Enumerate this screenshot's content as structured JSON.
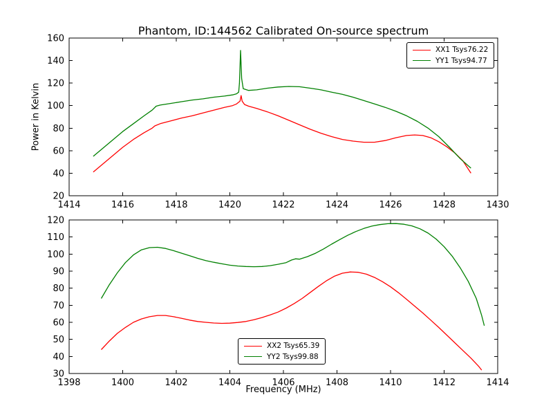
{
  "figure": {
    "background": "#ffffff"
  },
  "chart_data": [
    {
      "type": "line",
      "title": "Phantom, ID:144562 Calibrated On-source spectrum",
      "xlabel": "",
      "ylabel": "Power in Kelvin",
      "xlim": [
        1414,
        1430
      ],
      "ylim": [
        20,
        160
      ],
      "xticks": [
        1414,
        1416,
        1418,
        1420,
        1422,
        1424,
        1426,
        1428,
        1430
      ],
      "yticks": [
        20,
        40,
        60,
        80,
        100,
        120,
        140,
        160
      ],
      "grid": false,
      "legend": {
        "position": "upper right",
        "entries": [
          {
            "label": "XX1 Tsys76.22",
            "color": "#ff0000"
          },
          {
            "label": "YY1 Tsys94.77",
            "color": "#008000"
          }
        ]
      },
      "series": [
        {
          "name": "XX1 Tsys76.22",
          "color": "#ff0000",
          "points": [
            [
              1414.9,
              41
            ],
            [
              1415.2,
              47
            ],
            [
              1415.6,
              55
            ],
            [
              1416.0,
              63
            ],
            [
              1416.4,
              70
            ],
            [
              1416.8,
              76
            ],
            [
              1417.1,
              80
            ],
            [
              1417.2,
              82
            ],
            [
              1417.4,
              84
            ],
            [
              1417.8,
              86.5
            ],
            [
              1418.2,
              89
            ],
            [
              1418.6,
              91
            ],
            [
              1419.0,
              93.5
            ],
            [
              1419.4,
              96
            ],
            [
              1419.8,
              98.5
            ],
            [
              1420.1,
              100
            ],
            [
              1420.25,
              101.5
            ],
            [
              1420.33,
              103
            ],
            [
              1420.38,
              104
            ],
            [
              1420.42,
              109
            ],
            [
              1420.46,
              104
            ],
            [
              1420.55,
              101
            ],
            [
              1420.7,
              99.5
            ],
            [
              1421.0,
              97.5
            ],
            [
              1421.4,
              94.5
            ],
            [
              1421.8,
              91
            ],
            [
              1422.2,
              87
            ],
            [
              1422.6,
              83
            ],
            [
              1423.0,
              79
            ],
            [
              1423.4,
              75.5
            ],
            [
              1423.8,
              72.5
            ],
            [
              1424.2,
              70
            ],
            [
              1424.6,
              68.5
            ],
            [
              1425.0,
              67.5
            ],
            [
              1425.4,
              67.5
            ],
            [
              1425.8,
              69
            ],
            [
              1426.2,
              71.5
            ],
            [
              1426.6,
              73.5
            ],
            [
              1426.9,
              74
            ],
            [
              1427.2,
              73.5
            ],
            [
              1427.5,
              71.5
            ],
            [
              1427.8,
              68
            ],
            [
              1428.1,
              63.5
            ],
            [
              1428.4,
              58
            ],
            [
              1428.7,
              51
            ],
            [
              1429.0,
              40
            ]
          ]
        },
        {
          "name": "YY1 Tsys94.77",
          "color": "#008000",
          "points": [
            [
              1414.9,
              55
            ],
            [
              1415.2,
              61
            ],
            [
              1415.6,
              69
            ],
            [
              1416.0,
              77
            ],
            [
              1416.4,
              84
            ],
            [
              1416.8,
              91
            ],
            [
              1417.1,
              96
            ],
            [
              1417.25,
              99.5
            ],
            [
              1417.4,
              100.5
            ],
            [
              1417.8,
              102
            ],
            [
              1418.2,
              103.5
            ],
            [
              1418.6,
              105
            ],
            [
              1419.0,
              106
            ],
            [
              1419.4,
              107.5
            ],
            [
              1419.8,
              108.5
            ],
            [
              1420.1,
              109.5
            ],
            [
              1420.25,
              110.5
            ],
            [
              1420.33,
              112
            ],
            [
              1420.36,
              120
            ],
            [
              1420.4,
              149
            ],
            [
              1420.44,
              124
            ],
            [
              1420.5,
              115
            ],
            [
              1420.7,
              113.5
            ],
            [
              1421.0,
              114
            ],
            [
              1421.4,
              115.5
            ],
            [
              1421.8,
              116.5
            ],
            [
              1422.2,
              117
            ],
            [
              1422.6,
              116.8
            ],
            [
              1423.0,
              115.5
            ],
            [
              1423.4,
              114
            ],
            [
              1423.8,
              112
            ],
            [
              1424.2,
              110
            ],
            [
              1424.6,
              107.5
            ],
            [
              1425.0,
              104.5
            ],
            [
              1425.4,
              101.5
            ],
            [
              1425.8,
              98.5
            ],
            [
              1426.2,
              95
            ],
            [
              1426.6,
              91
            ],
            [
              1427.0,
              86
            ],
            [
              1427.4,
              80
            ],
            [
              1427.8,
              72.5
            ],
            [
              1428.2,
              63
            ],
            [
              1428.6,
              53
            ],
            [
              1429.0,
              44.5
            ]
          ]
        }
      ]
    },
    {
      "type": "line",
      "title": "",
      "xlabel": "Frequency (MHz)",
      "ylabel": "",
      "xlim": [
        1398,
        1414
      ],
      "ylim": [
        30,
        120
      ],
      "xticks": [
        1398,
        1400,
        1402,
        1404,
        1406,
        1408,
        1410,
        1412,
        1414
      ],
      "yticks": [
        30,
        40,
        50,
        60,
        70,
        80,
        90,
        100,
        110,
        120
      ],
      "grid": false,
      "legend": {
        "position": "lower center",
        "entries": [
          {
            "label": "XX2 Tsys65.39",
            "color": "#ff0000"
          },
          {
            "label": "YY2 Tsys99.88",
            "color": "#008000"
          }
        ]
      },
      "series": [
        {
          "name": "XX2 Tsys65.39",
          "color": "#ff0000",
          "points": [
            [
              1399.2,
              44
            ],
            [
              1399.5,
              49
            ],
            [
              1399.8,
              53.5
            ],
            [
              1400.1,
              57
            ],
            [
              1400.4,
              60
            ],
            [
              1400.7,
              62
            ],
            [
              1401.0,
              63.3
            ],
            [
              1401.3,
              64
            ],
            [
              1401.6,
              64
            ],
            [
              1401.9,
              63.3
            ],
            [
              1402.2,
              62.3
            ],
            [
              1402.5,
              61.3
            ],
            [
              1402.8,
              60.5
            ],
            [
              1403.1,
              60
            ],
            [
              1403.4,
              59.6
            ],
            [
              1403.7,
              59.4
            ],
            [
              1404.0,
              59.5
            ],
            [
              1404.3,
              59.9
            ],
            [
              1404.6,
              60.5
            ],
            [
              1404.9,
              61.5
            ],
            [
              1405.2,
              62.8
            ],
            [
              1405.5,
              64.3
            ],
            [
              1405.8,
              66
            ],
            [
              1406.1,
              68.3
            ],
            [
              1406.4,
              71
            ],
            [
              1406.7,
              74
            ],
            [
              1407.0,
              77.5
            ],
            [
              1407.3,
              81
            ],
            [
              1407.6,
              84.3
            ],
            [
              1407.9,
              87
            ],
            [
              1408.2,
              88.8
            ],
            [
              1408.5,
              89.5
            ],
            [
              1408.8,
              89.3
            ],
            [
              1409.1,
              88.2
            ],
            [
              1409.4,
              86.3
            ],
            [
              1409.7,
              83.8
            ],
            [
              1410.0,
              80.8
            ],
            [
              1410.3,
              77.3
            ],
            [
              1410.6,
              73.5
            ],
            [
              1410.9,
              69.5
            ],
            [
              1411.2,
              65.5
            ],
            [
              1411.5,
              61.3
            ],
            [
              1411.8,
              57
            ],
            [
              1412.1,
              52.5
            ],
            [
              1412.4,
              48
            ],
            [
              1412.7,
              43.5
            ],
            [
              1413.0,
              39
            ],
            [
              1413.3,
              34
            ],
            [
              1413.4,
              32
            ]
          ]
        },
        {
          "name": "YY2 Tsys99.88",
          "color": "#008000",
          "points": [
            [
              1399.2,
              74
            ],
            [
              1399.5,
              82
            ],
            [
              1399.8,
              89
            ],
            [
              1400.1,
              95
            ],
            [
              1400.4,
              99.5
            ],
            [
              1400.7,
              102.5
            ],
            [
              1401.0,
              103.8
            ],
            [
              1401.3,
              104
            ],
            [
              1401.6,
              103.3
            ],
            [
              1401.9,
              102
            ],
            [
              1402.2,
              100.5
            ],
            [
              1402.5,
              99
            ],
            [
              1402.8,
              97.5
            ],
            [
              1403.1,
              96.2
            ],
            [
              1403.4,
              95.2
            ],
            [
              1403.7,
              94.3
            ],
            [
              1404.0,
              93.5
            ],
            [
              1404.3,
              93
            ],
            [
              1404.6,
              92.7
            ],
            [
              1404.9,
              92.6
            ],
            [
              1405.2,
              92.7
            ],
            [
              1405.5,
              93.2
            ],
            [
              1405.8,
              94
            ],
            [
              1406.1,
              95
            ],
            [
              1406.3,
              96.5
            ],
            [
              1406.45,
              97.2
            ],
            [
              1406.6,
              97
            ],
            [
              1406.9,
              98.5
            ],
            [
              1407.2,
              100.5
            ],
            [
              1407.5,
              103
            ],
            [
              1407.8,
              105.8
            ],
            [
              1408.1,
              108.5
            ],
            [
              1408.4,
              111
            ],
            [
              1408.7,
              113.2
            ],
            [
              1409.0,
              115
            ],
            [
              1409.3,
              116.4
            ],
            [
              1409.6,
              117.3
            ],
            [
              1409.9,
              117.8
            ],
            [
              1410.2,
              117.9
            ],
            [
              1410.5,
              117.5
            ],
            [
              1410.8,
              116.5
            ],
            [
              1411.1,
              114.8
            ],
            [
              1411.4,
              112.3
            ],
            [
              1411.7,
              108.8
            ],
            [
              1412.0,
              104.3
            ],
            [
              1412.3,
              98.8
            ],
            [
              1412.6,
              92
            ],
            [
              1412.9,
              84
            ],
            [
              1413.2,
              74
            ],
            [
              1413.4,
              64
            ],
            [
              1413.5,
              58
            ]
          ]
        }
      ]
    }
  ]
}
